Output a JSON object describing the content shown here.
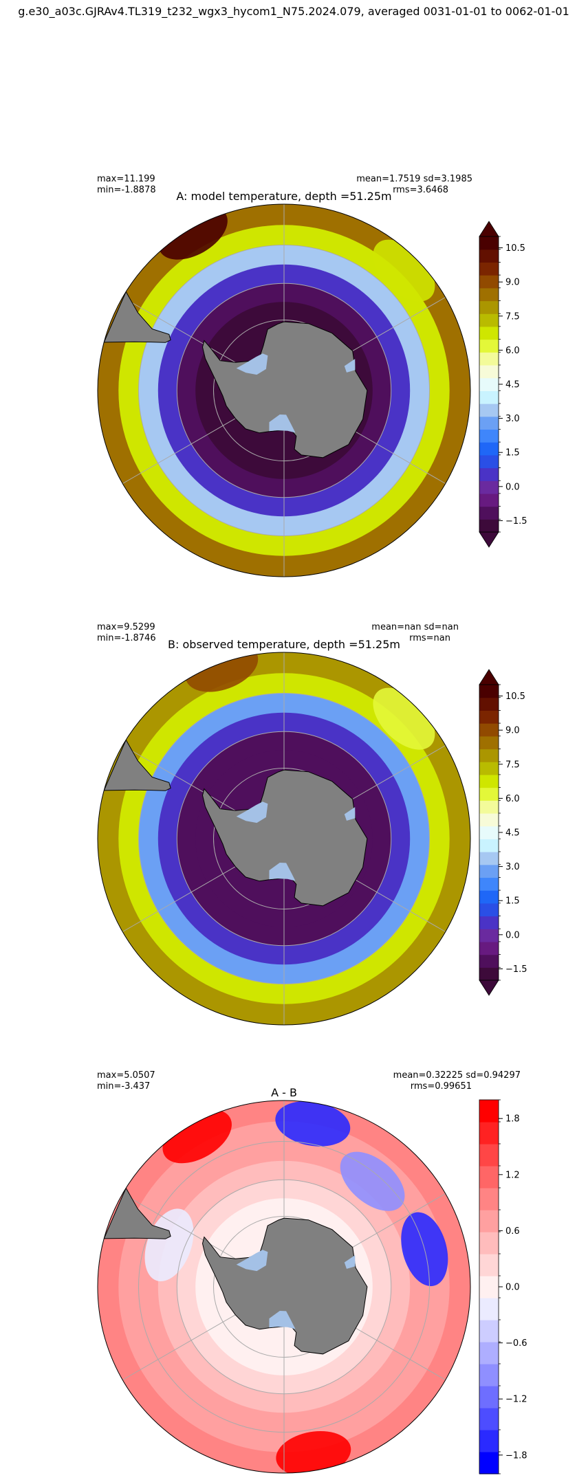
{
  "suptitle": "g.e30_a03c.GJRAv4.TL319_t232_wgx3_hycom1_N75.2024.079, averaged 0031-01-01 to 0062-01-01",
  "colors": {
    "land": "#808080",
    "ice_shelf": "#a4c1e6",
    "grid": "#aaaaaa",
    "temp_scale": [
      "#3d0a3a",
      "#4f0f5c",
      "#671a80",
      "#6a2a9f",
      "#4a33c6",
      "#2a4fe6",
      "#1f67f7",
      "#3f86fb",
      "#6ba0f4",
      "#a6c8f2",
      "#c9f3ff",
      "#e7fbfb",
      "#f7fbd8",
      "#f3fb9a",
      "#e3f739",
      "#cfe600",
      "#b9bb00",
      "#ab9600",
      "#9f7000",
      "#914a00",
      "#7b2500",
      "#621000",
      "#4a0000"
    ],
    "diff_scale": [
      "#0000ff",
      "#2a2aff",
      "#4d4dff",
      "#6e6eff",
      "#8f8fff",
      "#aeaeff",
      "#cdcdff",
      "#ebebff",
      "#fff0f0",
      "#ffd6d6",
      "#ffbcbc",
      "#ffa0a0",
      "#ff8484",
      "#ff6666",
      "#ff4646",
      "#ff2222",
      "#ff0000"
    ]
  },
  "chart_data": [
    {
      "type": "heatmap",
      "projection": "south-polar-stereographic",
      "title": "A: model temperature, depth =51.25m",
      "stats_left": [
        "max=11.199",
        "min=-1.8878"
      ],
      "stats_right": [
        "mean=1.7519 sd=3.1985",
        "rms=3.6468"
      ],
      "colorbar": {
        "vmin": -2,
        "vmax": 11,
        "extend": "both",
        "ticks": [
          -1.5,
          0.0,
          1.5,
          3.0,
          4.5,
          6.0,
          7.5,
          9.0,
          10.5
        ],
        "tick_labels": [
          "−1.5",
          "0.0",
          "1.5",
          "3.0",
          "4.5",
          "6.0",
          "7.5",
          "9.0",
          "10.5"
        ],
        "palette": "temp_scale"
      },
      "field": {
        "rings": [
          {
            "lat": -65,
            "value": -1.5
          },
          {
            "lat": -60,
            "value": -1.2
          },
          {
            "lat": -55,
            "value": 0.5
          },
          {
            "lat": -50,
            "value": 3.5
          },
          {
            "lat": -45,
            "value": 7.0
          },
          {
            "lat": -40,
            "value": 8.5
          }
        ],
        "anomalies": [
          {
            "lon": -30,
            "lat": -41,
            "value": 11.0
          },
          {
            "lon": 45,
            "lat": -44,
            "value": 6.5
          }
        ]
      }
    },
    {
      "type": "heatmap",
      "projection": "south-polar-stereographic",
      "title": "B: observed temperature, depth =51.25m",
      "stats_left": [
        "max=9.5299",
        "min=-1.8746"
      ],
      "stats_right": [
        "mean=nan sd=nan",
        "rms=nan"
      ],
      "colorbar": {
        "vmin": -2,
        "vmax": 11,
        "extend": "both",
        "ticks": [
          -1.5,
          0.0,
          1.5,
          3.0,
          4.5,
          6.0,
          7.5,
          9.0,
          10.5
        ],
        "tick_labels": [
          "−1.5",
          "0.0",
          "1.5",
          "3.0",
          "4.5",
          "6.0",
          "7.5",
          "9.0",
          "10.5"
        ],
        "palette": "temp_scale"
      },
      "field": {
        "rings": [
          {
            "lat": -65,
            "value": -1.4
          },
          {
            "lat": -60,
            "value": -1.0
          },
          {
            "lat": -55,
            "value": 0.6
          },
          {
            "lat": -50,
            "value": 3.0
          },
          {
            "lat": -45,
            "value": 6.5
          },
          {
            "lat": -40,
            "value": 8.0
          }
        ],
        "anomalies": [
          {
            "lon": -20,
            "lat": -41,
            "value": 9.0
          },
          {
            "lon": 45,
            "lat": -44,
            "value": 6.0
          }
        ]
      }
    },
    {
      "type": "heatmap",
      "projection": "south-polar-stereographic",
      "title": "A - B",
      "stats_left": [
        "max=5.0507",
        "min=-3.437"
      ],
      "stats_right": [
        "mean=0.32225 sd=0.94297",
        "rms=0.99651"
      ],
      "colorbar": {
        "vmin": -2,
        "vmax": 2,
        "extend": "neither",
        "ticks": [
          -1.8,
          -1.2,
          -0.6,
          0.0,
          0.6,
          1.2,
          1.8
        ],
        "tick_labels": [
          "−1.8",
          "−1.2",
          "−0.6",
          "0.0",
          "0.6",
          "1.2",
          "1.8"
        ],
        "palette": "diff_scale"
      },
      "field": {
        "rings": [
          {
            "lat": -65,
            "value": 0.1
          },
          {
            "lat": -60,
            "value": 0.2
          },
          {
            "lat": -55,
            "value": 0.4
          },
          {
            "lat": -50,
            "value": 0.6
          },
          {
            "lat": -45,
            "value": 0.8
          },
          {
            "lat": -40,
            "value": 1.0
          }
        ],
        "anomalies": [
          {
            "lon": -30,
            "lat": -43,
            "value": 1.9
          },
          {
            "lon": 170,
            "lat": -44,
            "value": 1.8
          },
          {
            "lon": 10,
            "lat": -45,
            "value": -1.7
          },
          {
            "lon": 75,
            "lat": -50,
            "value": -1.6
          },
          {
            "lon": 40,
            "lat": -52,
            "value": -1.0
          },
          {
            "lon": -70,
            "lat": -56,
            "value": -0.3
          }
        ]
      }
    }
  ]
}
